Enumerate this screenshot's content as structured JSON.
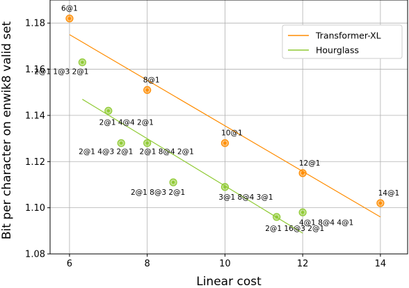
{
  "chart_data": {
    "type": "scatter",
    "xlabel": "Linear cost",
    "ylabel": "Bit per character on enwik8 valid set",
    "xlim": [
      5.5,
      14.7
    ],
    "ylim": [
      1.08,
      1.19
    ],
    "xticks": [
      6,
      8,
      10,
      12,
      14
    ],
    "yticks": [
      1.08,
      1.1,
      1.12,
      1.14,
      1.16,
      1.18
    ],
    "xtick_labels": [
      "6",
      "8",
      "10",
      "12",
      "14"
    ],
    "ytick_labels": [
      "1.08",
      "1.10",
      "1.12",
      "1.14",
      "1.16",
      "1.18"
    ],
    "grid": true,
    "legend_position": "top-right",
    "series": [
      {
        "name": "Transformer-XL",
        "color": "#ff8c00",
        "points": [
          {
            "x": 6,
            "y": 1.182,
            "label": "6@1"
          },
          {
            "x": 8,
            "y": 1.151,
            "label": "8@1"
          },
          {
            "x": 10,
            "y": 1.128,
            "label": "10@1"
          },
          {
            "x": 12,
            "y": 1.115,
            "label": "12@1"
          },
          {
            "x": 14,
            "y": 1.102,
            "label": "14@1"
          }
        ],
        "fit_line": {
          "x": [
            6,
            14
          ],
          "y": [
            1.175,
            1.096
          ]
        }
      },
      {
        "name": "Hourglass",
        "color": "#8fca33",
        "points": [
          {
            "x": 6.33,
            "y": 1.163,
            "label": "2@1 1@3 2@1"
          },
          {
            "x": 7.0,
            "y": 1.142,
            "label": "2@1 4@4 2@1"
          },
          {
            "x": 7.33,
            "y": 1.128,
            "label": "2@1 4@3 2@1"
          },
          {
            "x": 8.0,
            "y": 1.128,
            "label": "2@1 8@4 2@1"
          },
          {
            "x": 8.67,
            "y": 1.111,
            "label": "2@1 8@3 2@1"
          },
          {
            "x": 10.0,
            "y": 1.109,
            "label": "3@1 8@4 3@1"
          },
          {
            "x": 11.33,
            "y": 1.096,
            "label": "2@1 16@3 2@1"
          },
          {
            "x": 12.0,
            "y": 1.098,
            "label": "4@1 8@4 4@1"
          }
        ],
        "fit_line": {
          "x": [
            6.33,
            12
          ],
          "y": [
            1.147,
            1.089
          ]
        }
      }
    ]
  }
}
